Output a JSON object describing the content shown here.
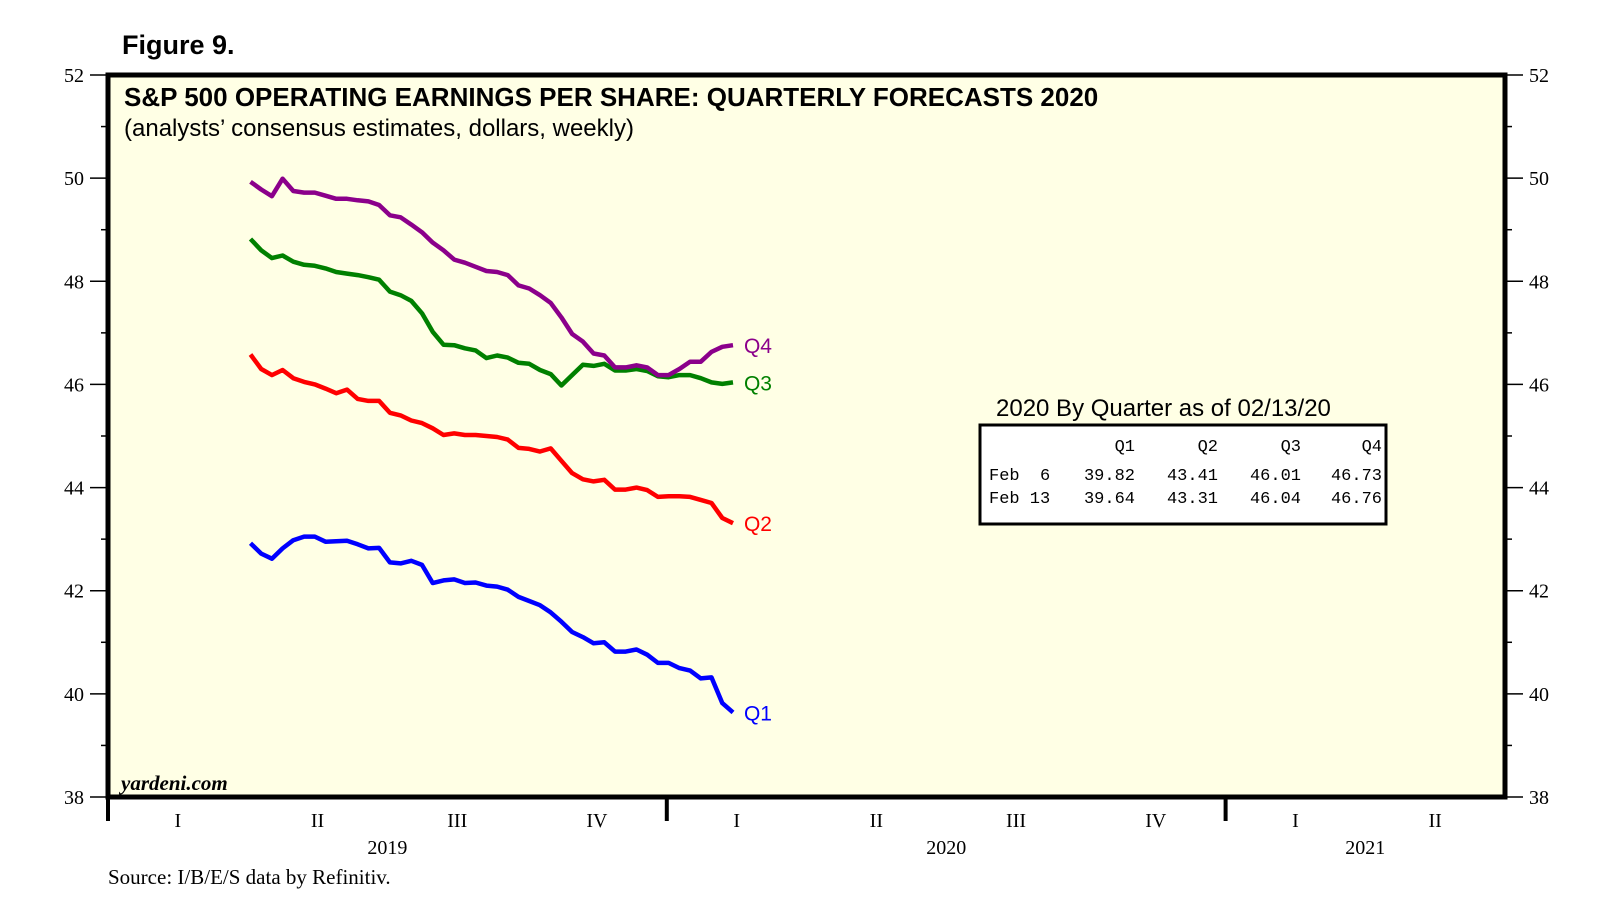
{
  "figure_label": "Figure 9.",
  "chart_data": {
    "type": "line",
    "title": "S&P 500 OPERATING EARNINGS PER SHARE: QUARTERLY FORECASTS 2020",
    "subtitle": "(analysts’ consensus estimates, dollars, weekly)",
    "xlabel": "",
    "ylabel": "",
    "ylim": [
      38,
      52
    ],
    "y_ticks_major": [
      38,
      40,
      42,
      44,
      46,
      48,
      50,
      52
    ],
    "y_ticks_minor_step": 1,
    "y_axis_sides": [
      "left",
      "right"
    ],
    "grid": false,
    "background_color": "#ffffe5",
    "x_axis": {
      "start": "2019-01-01",
      "end": "2021-07-01",
      "years": [
        {
          "label": "2019",
          "quarters": [
            "I",
            "II",
            "III",
            "IV"
          ]
        },
        {
          "label": "2020",
          "quarters": [
            "I",
            "II",
            "III",
            "IV"
          ]
        },
        {
          "label": "2021",
          "quarters": [
            "I",
            "II"
          ]
        }
      ]
    },
    "x_dates": {
      "first": "2019-04-04",
      "last": "2020-02-13",
      "frequency": "weekly",
      "count": 46
    },
    "series": [
      {
        "name": "Q1",
        "color": "#0000ff",
        "values": [
          42.92,
          42.72,
          42.62,
          42.82,
          42.98,
          43.05,
          43.05,
          42.95,
          42.96,
          42.97,
          42.9,
          42.82,
          42.83,
          42.55,
          42.53,
          42.58,
          42.5,
          42.15,
          42.2,
          42.22,
          42.15,
          42.16,
          42.1,
          42.08,
          42.02,
          41.88,
          41.8,
          41.72,
          41.58,
          41.4,
          41.2,
          41.1,
          40.98,
          41.0,
          40.82,
          40.82,
          40.86,
          40.76,
          40.6,
          40.6,
          40.5,
          40.45,
          40.3,
          40.32,
          39.82,
          39.64
        ]
      },
      {
        "name": "Q2",
        "color": "#ff0000",
        "values": [
          46.58,
          46.3,
          46.18,
          46.28,
          46.12,
          46.05,
          46.0,
          45.92,
          45.83,
          45.9,
          45.72,
          45.68,
          45.68,
          45.45,
          45.4,
          45.3,
          45.25,
          45.15,
          45.02,
          45.05,
          45.02,
          45.02,
          45.0,
          44.98,
          44.93,
          44.77,
          44.75,
          44.7,
          44.76,
          44.52,
          44.28,
          44.16,
          44.12,
          44.15,
          43.96,
          43.96,
          44.0,
          43.95,
          43.82,
          43.83,
          43.83,
          43.82,
          43.76,
          43.7,
          43.41,
          43.31
        ]
      },
      {
        "name": "Q3",
        "color": "#008000",
        "values": [
          48.82,
          48.6,
          48.45,
          48.5,
          48.38,
          48.32,
          48.3,
          48.25,
          48.18,
          48.15,
          48.12,
          48.08,
          48.03,
          47.8,
          47.73,
          47.62,
          47.38,
          47.02,
          46.77,
          46.76,
          46.7,
          46.66,
          46.51,
          46.56,
          46.52,
          46.42,
          46.4,
          46.28,
          46.2,
          45.98,
          46.18,
          46.38,
          46.36,
          46.4,
          46.27,
          46.27,
          46.3,
          46.26,
          46.16,
          46.14,
          46.18,
          46.18,
          46.12,
          46.04,
          46.01,
          46.04
        ]
      },
      {
        "name": "Q4",
        "color": "#8b008b",
        "values": [
          49.93,
          49.78,
          49.65,
          49.99,
          49.75,
          49.72,
          49.72,
          49.66,
          49.6,
          49.6,
          49.57,
          49.55,
          49.48,
          49.28,
          49.24,
          49.1,
          48.95,
          48.75,
          48.6,
          48.42,
          48.36,
          48.28,
          48.2,
          48.18,
          48.12,
          47.92,
          47.86,
          47.73,
          47.58,
          47.3,
          46.98,
          46.83,
          46.6,
          46.56,
          46.33,
          46.33,
          46.37,
          46.33,
          46.18,
          46.18,
          46.3,
          46.44,
          46.44,
          46.63,
          46.73,
          46.76
        ]
      }
    ],
    "table": {
      "heading": "2020 By Quarter as of 02/13/20",
      "columns": [
        "",
        "Q1",
        "Q2",
        "Q3",
        "Q4"
      ],
      "rows": [
        [
          "Feb  6",
          "39.82",
          "43.41",
          "46.01",
          "46.73"
        ],
        [
          "Feb 13",
          "39.64",
          "43.31",
          "46.04",
          "46.76"
        ]
      ]
    },
    "annotations": {
      "watermark": "yardeni.com",
      "source": "Source: I/B/E/S data by Refinitiv."
    }
  }
}
